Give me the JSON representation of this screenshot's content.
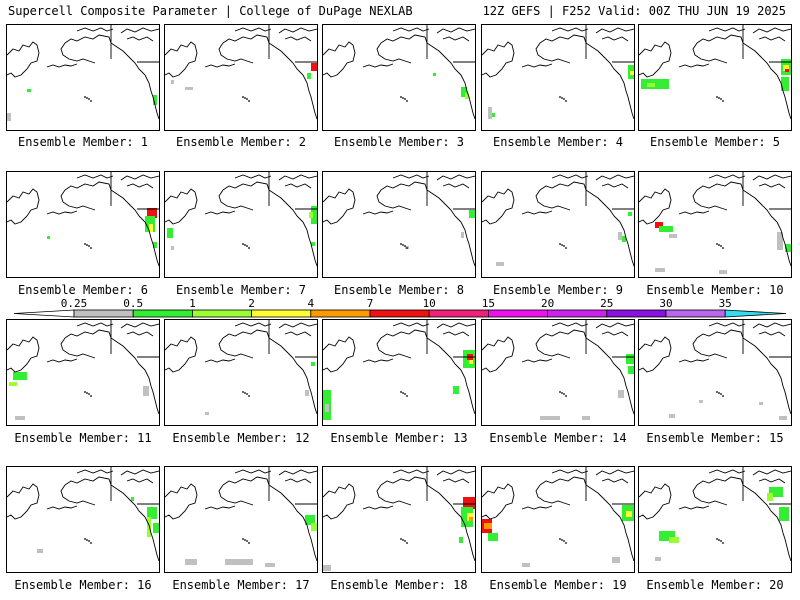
{
  "header": {
    "title": "Supercell Composite Parameter | College of DuPage NEXLAB",
    "valid": "12Z GEFS | F252 Valid: 00Z THU JUN 19 2025"
  },
  "member_prefix": "Ensemble Member: ",
  "members": [
    1,
    2,
    3,
    4,
    5,
    6,
    7,
    8,
    9,
    10,
    11,
    12,
    13,
    14,
    15,
    16,
    17,
    18,
    19,
    20
  ],
  "colorbar": {
    "levels": [
      "0.25",
      "0.5",
      "1",
      "2",
      "4",
      "7",
      "10",
      "15",
      "20",
      "25",
      "30",
      "35"
    ],
    "colors": [
      "#ffffff",
      "#c0c0c0",
      "#33ee33",
      "#99ff33",
      "#ffff33",
      "#ff9900",
      "#ee1111",
      "#ee2277",
      "#ee11ee",
      "#cc22ee",
      "#8811dd",
      "#bb66ee",
      "#33ddee"
    ]
  }
}
